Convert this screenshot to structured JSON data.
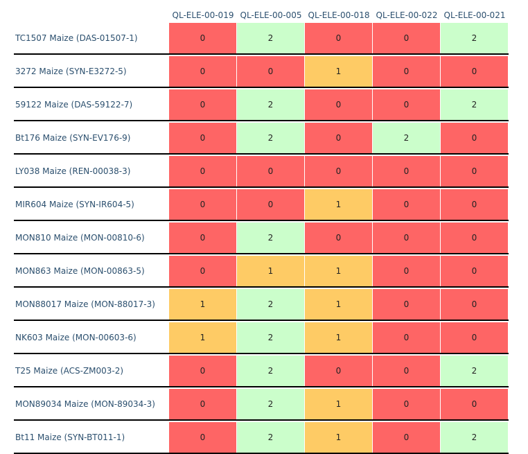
{
  "colors": {
    "0": "#fe6565",
    "1": "#fecb65",
    "2": "#cbfecb",
    "text": "#2b4f6e",
    "separator": "#000000"
  },
  "chart_data": {
    "type": "heatmap",
    "columns": [
      "QL-ELE-00-019",
      "QL-ELE-00-005",
      "QL-ELE-00-018",
      "QL-ELE-00-022",
      "QL-ELE-00-021"
    ],
    "rows": [
      {
        "label": "TC1507 Maize (DAS-01507-1)",
        "values": [
          0,
          2,
          0,
          0,
          2
        ]
      },
      {
        "label": "3272 Maize (SYN-E3272-5)",
        "values": [
          0,
          0,
          1,
          0,
          0
        ]
      },
      {
        "label": "59122 Maize (DAS-59122-7)",
        "values": [
          0,
          2,
          0,
          0,
          2
        ]
      },
      {
        "label": "Bt176 Maize (SYN-EV176-9)",
        "values": [
          0,
          2,
          0,
          2,
          0
        ]
      },
      {
        "label": "LY038 Maize (REN-00038-3)",
        "values": [
          0,
          0,
          0,
          0,
          0
        ]
      },
      {
        "label": "MIR604 Maize (SYN-IR604-5)",
        "values": [
          0,
          0,
          1,
          0,
          0
        ]
      },
      {
        "label": "MON810 Maize (MON-00810-6)",
        "values": [
          0,
          2,
          0,
          0,
          0
        ]
      },
      {
        "label": "MON863 Maize (MON-00863-5)",
        "values": [
          0,
          1,
          1,
          0,
          0
        ]
      },
      {
        "label": "MON88017 Maize (MON-88017-3)",
        "values": [
          1,
          2,
          1,
          0,
          0
        ]
      },
      {
        "label": "NK603 Maize (MON-00603-6)",
        "values": [
          1,
          2,
          1,
          0,
          0
        ]
      },
      {
        "label": "T25 Maize (ACS-ZM003-2)",
        "values": [
          0,
          2,
          0,
          0,
          2
        ]
      },
      {
        "label": "MON89034 Maize (MON-89034-3)",
        "values": [
          0,
          2,
          1,
          0,
          0
        ]
      },
      {
        "label": "Bt11 Maize (SYN-BT011-1)",
        "values": [
          0,
          2,
          1,
          0,
          2
        ]
      }
    ]
  }
}
